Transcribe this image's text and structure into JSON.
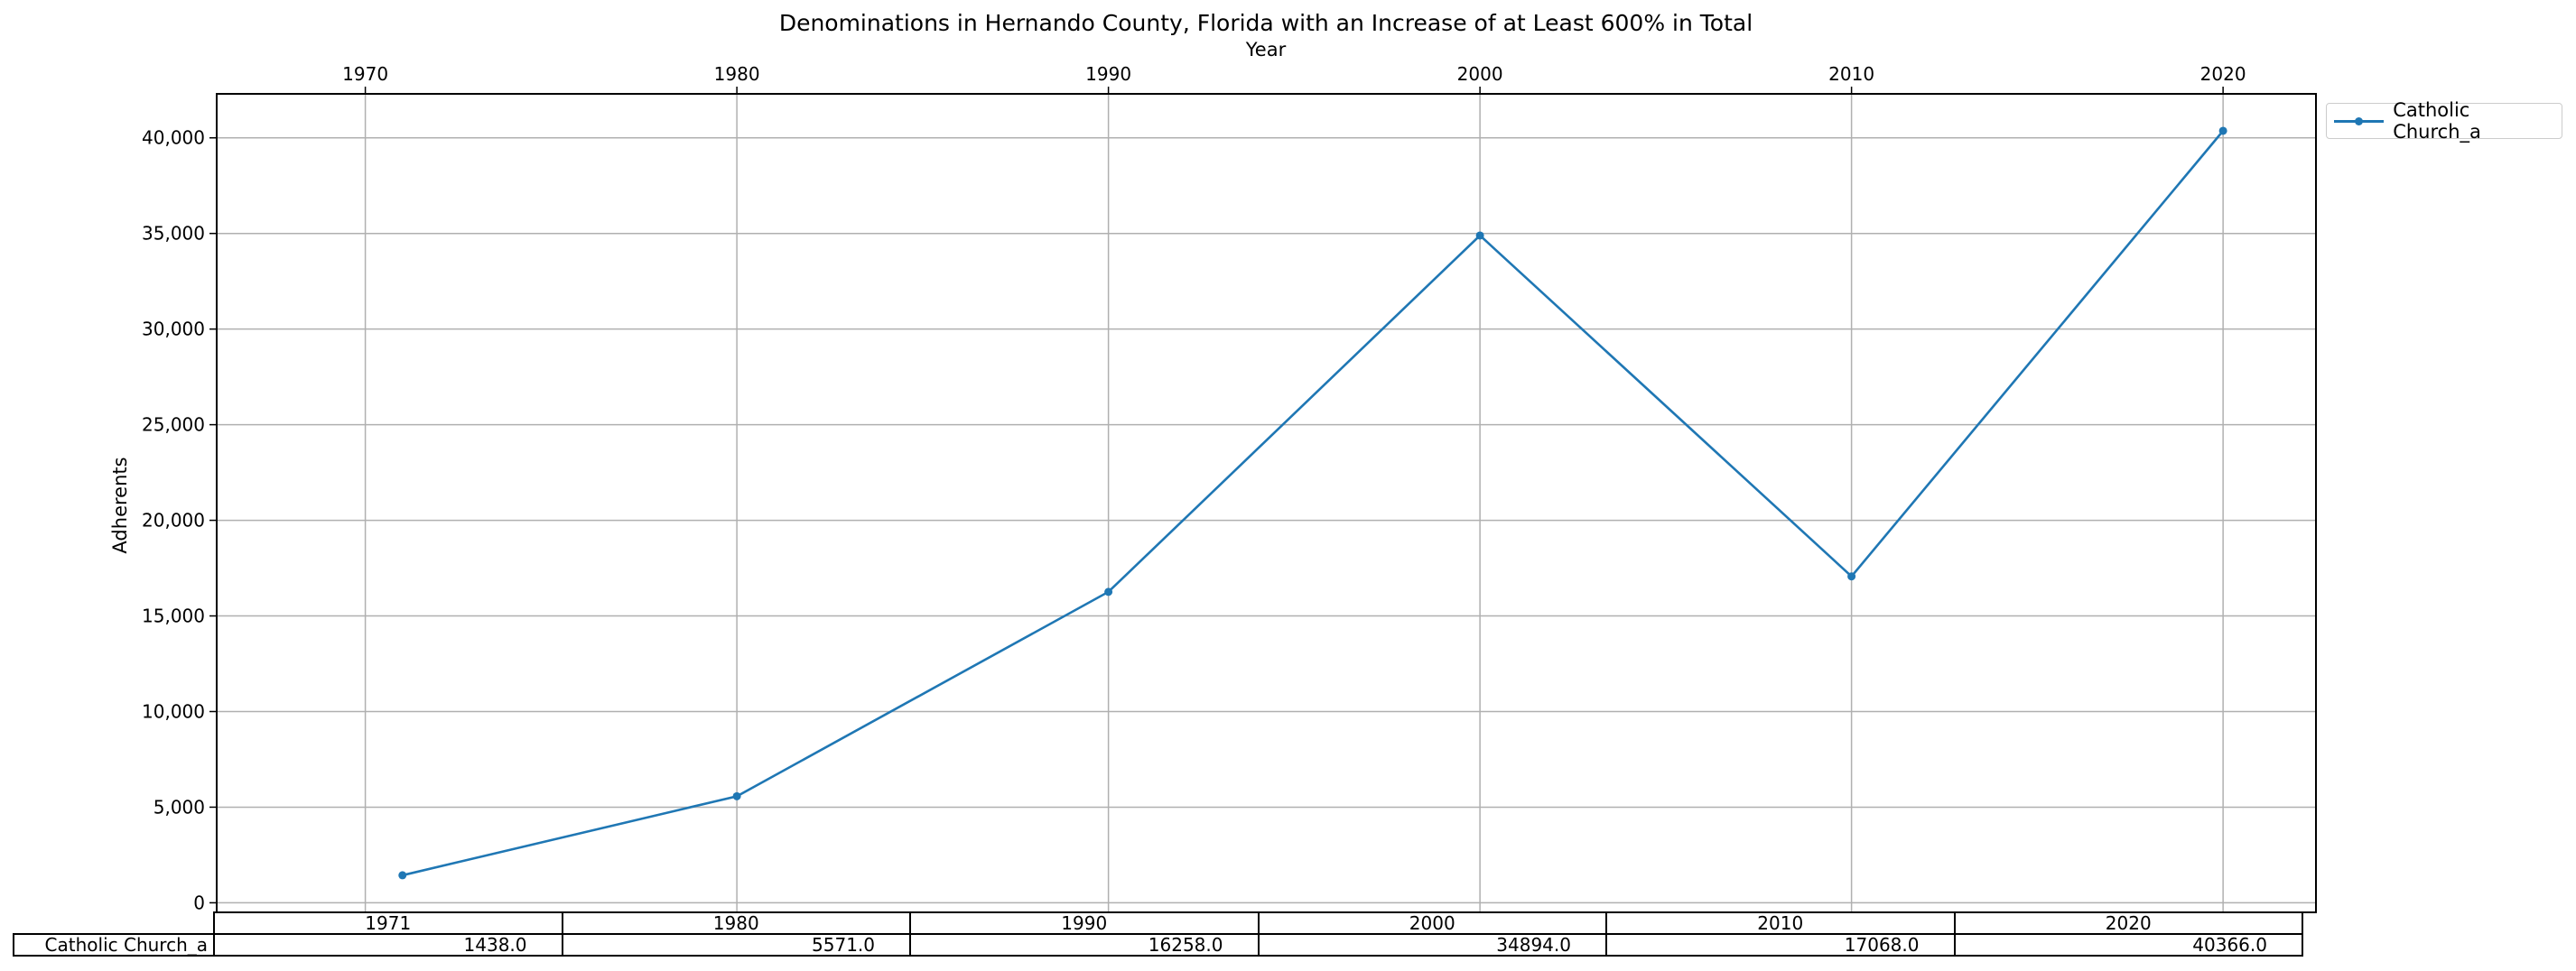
{
  "chart_data": {
    "type": "line",
    "title": "Denominations in Hernando County, Florida with an Increase of at Least 600% in Total",
    "xlabel": "Year",
    "ylabel": "Adherents",
    "x": [
      1971,
      1980,
      1990,
      2000,
      2010,
      2020
    ],
    "x_ticks": [
      "1970",
      "1980",
      "1990",
      "2000",
      "2010",
      "2020"
    ],
    "x_tick_values": [
      1970,
      1980,
      1990,
      2000,
      2010,
      2020
    ],
    "xlim": [
      1966,
      2022.5
    ],
    "y_ticks": [
      "0",
      "5,000",
      "10,000",
      "15,000",
      "20,000",
      "25,000",
      "30,000",
      "35,000",
      "40,000"
    ],
    "y_tick_values": [
      0,
      5000,
      10000,
      15000,
      20000,
      25000,
      30000,
      35000,
      40000
    ],
    "ylim": [
      -500,
      42300
    ],
    "grid": true,
    "legend_position": "outside-top-right",
    "x_axis_position": "top",
    "series": [
      {
        "name": "Catholic Church_a",
        "color": "#1f77b4",
        "values": [
          1438,
          5571,
          16258,
          34894,
          17068,
          40366
        ]
      }
    ],
    "table": {
      "col_labels": [
        "1971",
        "1980",
        "1990",
        "2000",
        "2010",
        "2020"
      ],
      "row_label": "Catholic Church_a",
      "cells": [
        "1438.0",
        "5571.0",
        "16258.0",
        "34894.0",
        "17068.0",
        "40366.0"
      ]
    }
  }
}
